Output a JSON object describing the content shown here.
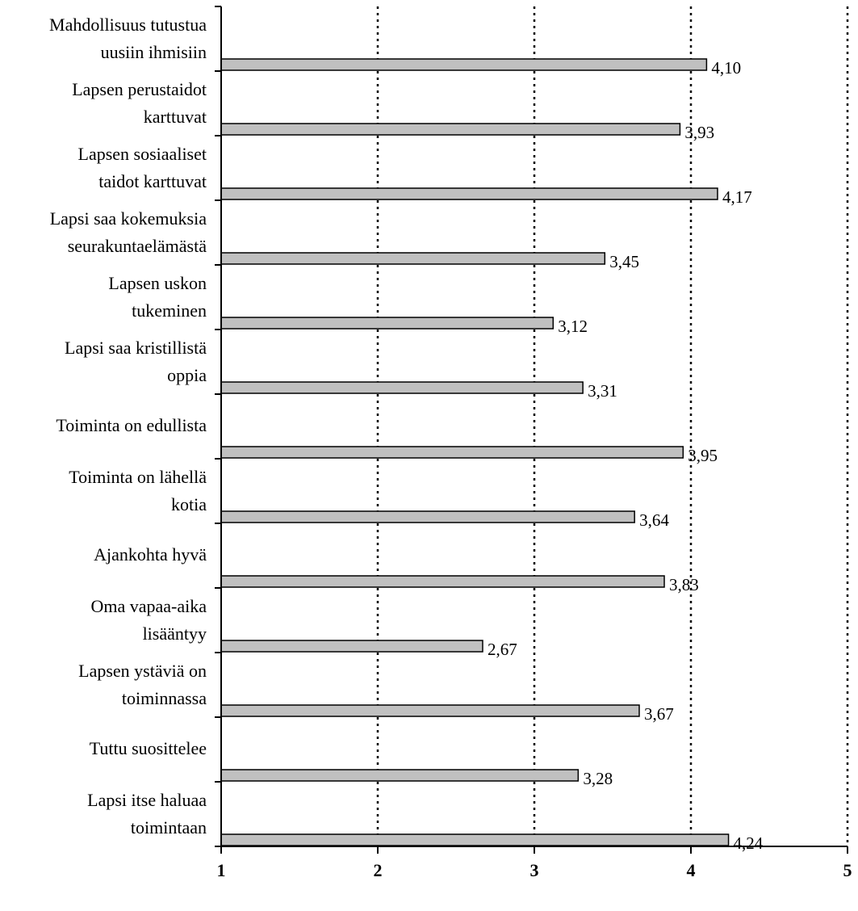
{
  "chart_data": {
    "type": "bar",
    "orientation": "horizontal",
    "title": "",
    "xlabel": "",
    "ylabel": "",
    "xlim": [
      1,
      5
    ],
    "xticks": [
      "1",
      "2",
      "3",
      "4",
      "5"
    ],
    "grid": "vertical-dotted",
    "legend": "none",
    "colors": {
      "bar_fill": "#c0c0c0",
      "bar_stroke": "#000000",
      "grid": "#000000"
    },
    "categories": [
      {
        "lines": [
          "Mahdollisuus tutustua",
          "uusiin ihmisiin"
        ],
        "value": 4.1,
        "label": "4,10"
      },
      {
        "lines": [
          "Lapsen perustaidot",
          "karttuvat"
        ],
        "value": 3.93,
        "label": "3,93"
      },
      {
        "lines": [
          "Lapsen sosiaaliset",
          "taidot karttuvat"
        ],
        "value": 4.17,
        "label": "4,17"
      },
      {
        "lines": [
          "Lapsi saa kokemuksia",
          "seurakuntaelämästä"
        ],
        "value": 3.45,
        "label": "3,45"
      },
      {
        "lines": [
          "Lapsen uskon",
          "tukeminen"
        ],
        "value": 3.12,
        "label": "3,12"
      },
      {
        "lines": [
          "Lapsi saa kristillistä",
          "oppia"
        ],
        "value": 3.31,
        "label": "3,31"
      },
      {
        "lines": [
          "Toiminta on edullista"
        ],
        "value": 3.95,
        "label": "3,95"
      },
      {
        "lines": [
          "Toiminta on lähellä",
          "kotia"
        ],
        "value": 3.64,
        "label": "3,64"
      },
      {
        "lines": [
          "Ajankohta hyvä"
        ],
        "value": 3.83,
        "label": "3,83"
      },
      {
        "lines": [
          "Oma vapaa-aika",
          "lisääntyy"
        ],
        "value": 2.67,
        "label": "2,67"
      },
      {
        "lines": [
          "Lapsen ystäviä on",
          "toiminnassa"
        ],
        "value": 3.67,
        "label": "3,67"
      },
      {
        "lines": [
          "Tuttu suosittelee"
        ],
        "value": 3.28,
        "label": "3,28"
      },
      {
        "lines": [
          "Lapsi itse haluaa",
          "toimintaan"
        ],
        "value": 4.24,
        "label": "4,24"
      }
    ]
  }
}
